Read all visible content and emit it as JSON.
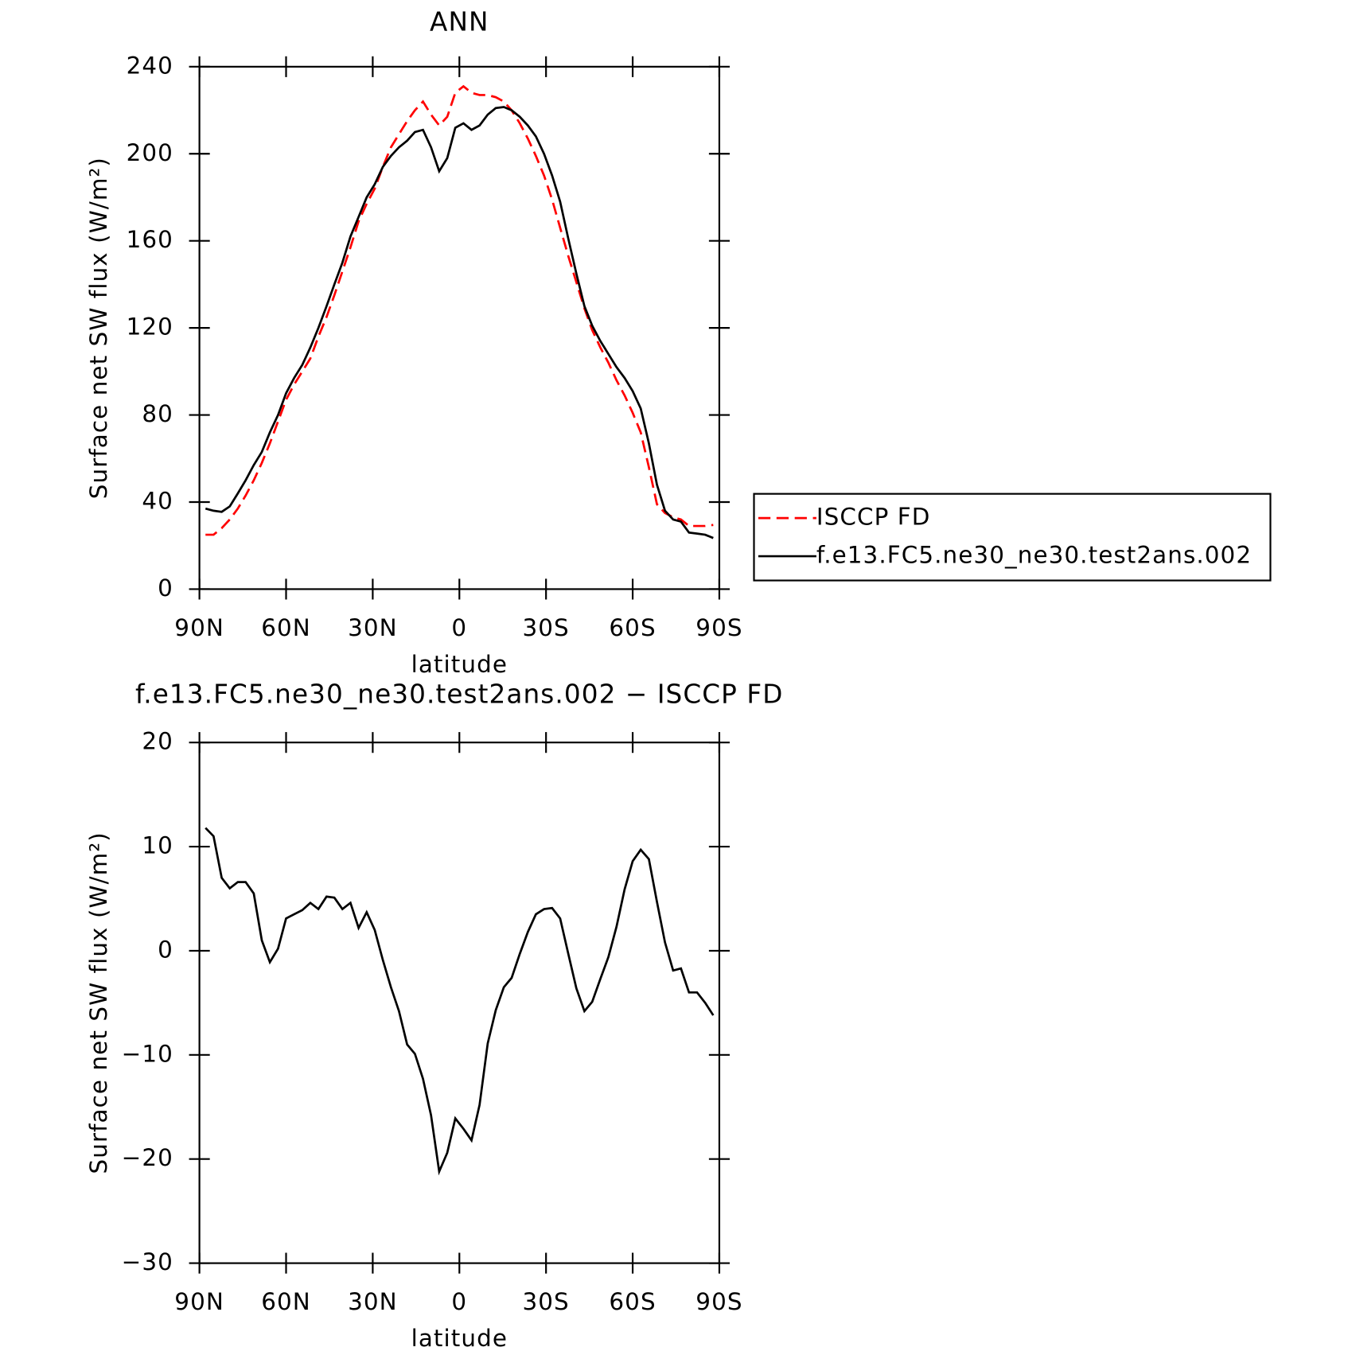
{
  "chart_data": [
    {
      "type": "line",
      "title": "ANN",
      "xlabel": "latitude",
      "ylabel": "Surface net SW flux (W/m²)",
      "x": [
        87.9,
        85.1,
        82.3,
        79.5,
        76.7,
        74.0,
        71.2,
        68.4,
        65.6,
        62.8,
        60.0,
        57.2,
        54.4,
        51.6,
        48.8,
        46.0,
        43.3,
        40.5,
        37.7,
        34.9,
        32.1,
        29.3,
        26.5,
        23.7,
        20.9,
        18.1,
        15.4,
        12.6,
        9.8,
        7.0,
        4.2,
        1.4,
        -1.4,
        -4.2,
        -7.0,
        -9.8,
        -12.6,
        -15.4,
        -18.1,
        -20.9,
        -23.7,
        -26.5,
        -29.3,
        -32.1,
        -34.9,
        -37.7,
        -40.5,
        -43.3,
        -46.0,
        -48.8,
        -51.6,
        -54.4,
        -57.2,
        -60.0,
        -62.8,
        -65.6,
        -68.4,
        -71.2,
        -74.0,
        -76.7,
        -79.5,
        -82.3,
        -85.1,
        -87.9
      ],
      "series": [
        {
          "name": "ISCCP FD",
          "color": "#ff0000",
          "dashed": true,
          "values": [
            25,
            25,
            28,
            32,
            37,
            43,
            50,
            58,
            67,
            77,
            87,
            94,
            100,
            106,
            116,
            125,
            135,
            146,
            157,
            169,
            177,
            184,
            194,
            203,
            209,
            215,
            220,
            224,
            218,
            213,
            217,
            228,
            231,
            228,
            227,
            227,
            226,
            224,
            220,
            214,
            207,
            199,
            190,
            179,
            166,
            153,
            141,
            129,
            119,
            111,
            104,
            96,
            89,
            81,
            72,
            56,
            39,
            35,
            33,
            32,
            29,
            29,
            29,
            29.5
          ]
        },
        {
          "name": "f.e13.FC5.ne30_ne30.test2ans.002",
          "color": "#000000",
          "dashed": false,
          "values": [
            37,
            36,
            35.5,
            38,
            44,
            50,
            57,
            63,
            72,
            80,
            90,
            97,
            103,
            111,
            120,
            130,
            140,
            150,
            162,
            171,
            180,
            186,
            194,
            199,
            203,
            206,
            210,
            211,
            203,
            192,
            198,
            212,
            214,
            211,
            213,
            218,
            221,
            221.5,
            220,
            217,
            213,
            208,
            200,
            190,
            178,
            161,
            145,
            130,
            121,
            114,
            108,
            102,
            97,
            91,
            83,
            67,
            48,
            36,
            32,
            31,
            26,
            25.5,
            25,
            23.5
          ]
        }
      ],
      "xlim": [
        90,
        -90
      ],
      "xticks": [
        {
          "value": 90,
          "label": "90N"
        },
        {
          "value": 60,
          "label": "60N"
        },
        {
          "value": 30,
          "label": "30N"
        },
        0,
        {
          "value": -30,
          "label": "30S"
        },
        {
          "value": -60,
          "label": "60S"
        },
        {
          "value": -90,
          "label": "90S"
        }
      ],
      "ylim": [
        0,
        240
      ],
      "yticks": [
        0,
        40,
        80,
        120,
        160,
        200,
        240
      ],
      "legend": "right"
    },
    {
      "type": "line",
      "title": "f.e13.FC5.ne30_ne30.test2ans.002 − ISCCP FD",
      "xlabel": "latitude",
      "ylabel": "Surface net SW flux (W/m²)",
      "x": [
        87.9,
        85.1,
        82.3,
        79.5,
        76.7,
        74.0,
        71.2,
        68.4,
        65.6,
        62.8,
        60.0,
        57.2,
        54.4,
        51.6,
        48.8,
        46.0,
        43.3,
        40.5,
        37.7,
        34.9,
        32.1,
        29.3,
        26.5,
        23.7,
        20.9,
        18.1,
        15.4,
        12.6,
        9.8,
        7.0,
        4.2,
        1.4,
        -1.4,
        -4.2,
        -7.0,
        -9.8,
        -12.6,
        -15.4,
        -18.1,
        -20.9,
        -23.7,
        -26.5,
        -29.3,
        -32.1,
        -34.9,
        -37.7,
        -40.5,
        -43.3,
        -46.0,
        -48.8,
        -51.6,
        -54.4,
        -57.2,
        -60.0,
        -62.8,
        -65.6,
        -68.4,
        -71.2,
        -74.0,
        -76.7,
        -79.5,
        -82.3,
        -85.1,
        -87.9
      ],
      "series": [
        {
          "color": "#000000",
          "dashed": false,
          "values": [
            11.8,
            11,
            7,
            6,
            6.6,
            6.6,
            5.5,
            1,
            -1.1,
            0.2,
            3.1,
            3.5,
            3.9,
            4.6,
            4,
            5.2,
            5.1,
            4,
            4.6,
            2.2,
            3.7,
            2,
            -0.9,
            -3.5,
            -5.8,
            -9,
            -9.9,
            -12.3,
            -15.8,
            -21.2,
            -19.4,
            -16.1,
            -17.1,
            -18.2,
            -14.8,
            -8.9,
            -5.7,
            -3.5,
            -2.6,
            -0.3,
            1.8,
            3.5,
            4,
            4.1,
            3.1,
            -0.3,
            -3.6,
            -5.8,
            -4.9,
            -2.7,
            -0.6,
            2.3,
            5.9,
            8.6,
            9.7,
            8.8,
            4.7,
            0.8,
            -1.9,
            -1.7,
            -4,
            -4,
            -5,
            -6.2
          ]
        }
      ],
      "xlim": [
        90,
        -90
      ],
      "xticks": [
        {
          "value": 90,
          "label": "90N"
        },
        {
          "value": 60,
          "label": "60N"
        },
        {
          "value": 30,
          "label": "30N"
        },
        0,
        {
          "value": -30,
          "label": "30S"
        },
        {
          "value": -60,
          "label": "60S"
        },
        {
          "value": -90,
          "label": "90S"
        }
      ],
      "ylim": [
        -30,
        20
      ],
      "yticks": [
        {
          "value": -30,
          "label": "−30"
        },
        {
          "value": -20,
          "label": "−20"
        },
        {
          "value": -10,
          "label": "−10"
        },
        0,
        10,
        20
      ]
    }
  ]
}
